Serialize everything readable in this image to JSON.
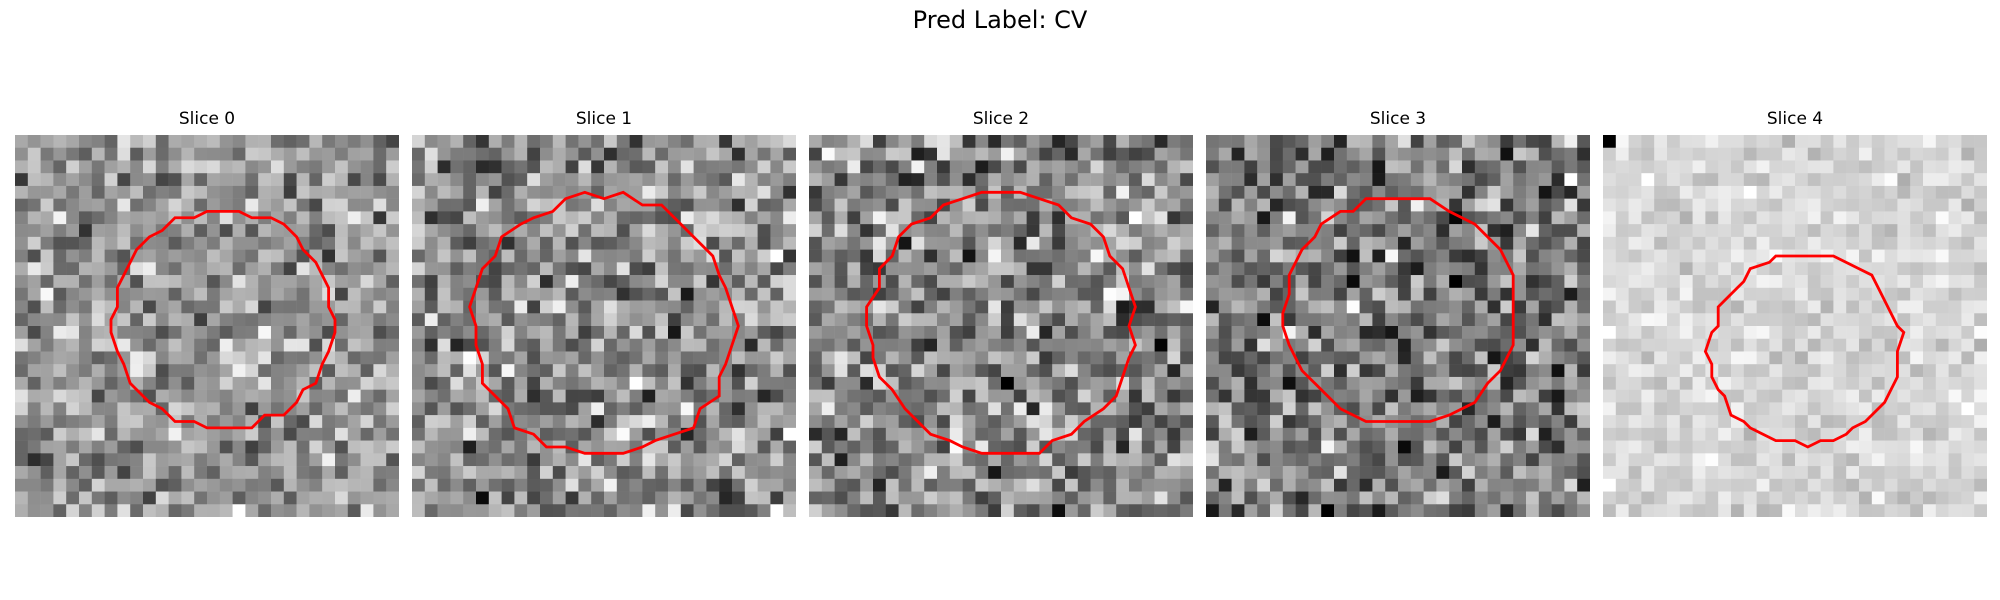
{
  "figure": {
    "title": "Pred Label: CV",
    "contour_color": "#ff0000"
  },
  "slices": [
    {
      "label": "Slice 0"
    },
    {
      "label": "Slice 1"
    },
    {
      "label": "Slice 2"
    },
    {
      "label": "Slice 3"
    },
    {
      "label": "Slice 4"
    }
  ]
}
